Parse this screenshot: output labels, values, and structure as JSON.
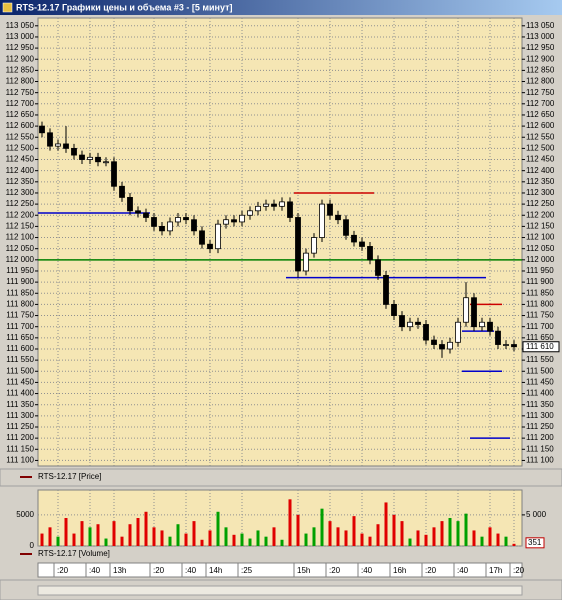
{
  "window_title": "RTS-12.17 Графики цены и объема #3 - [5 минут]",
  "chart_data": [
    {
      "type": "candlestick",
      "name": "RTS-12.17 [Price]",
      "categories": [
        null,
        null,
        ":20",
        null,
        null,
        null,
        ":40",
        null,
        null,
        "13h",
        null,
        null,
        null,
        null,
        ":20",
        null,
        null,
        null,
        ":40",
        null,
        null,
        "14h",
        null,
        null,
        null,
        ":25",
        null,
        null,
        null,
        null,
        null,
        null,
        "15h",
        null,
        null,
        null,
        ":20",
        null,
        null,
        null,
        ":40",
        null,
        null,
        null,
        "16h",
        null,
        null,
        null,
        ":20",
        null,
        null,
        null,
        ":40",
        null,
        null,
        null,
        "17h",
        null,
        null,
        ":20"
      ],
      "open": [
        112600,
        112570,
        112510,
        112520,
        112500,
        112470,
        112450,
        112460,
        112440,
        112440,
        112330,
        112280,
        112220,
        112210,
        112190,
        112150,
        112130,
        112170,
        112190,
        112180,
        112130,
        112070,
        112050,
        112160,
        112180,
        112170,
        112200,
        112220,
        112240,
        112250,
        112240,
        112260,
        112190,
        111950,
        112030,
        112100,
        112250,
        112200,
        112180,
        112110,
        112080,
        112060,
        112000,
        111930,
        111800,
        111750,
        111700,
        111720,
        111710,
        111640,
        111620,
        111600,
        111630,
        111720,
        111830,
        111700,
        111720,
        111680,
        111620,
        111620
      ],
      "high": [
        112620,
        112590,
        112540,
        112600,
        112520,
        112490,
        112480,
        112480,
        112460,
        112460,
        112350,
        112300,
        112240,
        112230,
        112210,
        112170,
        112190,
        112210,
        112210,
        112200,
        112150,
        112090,
        112180,
        112200,
        112200,
        112220,
        112240,
        112260,
        112270,
        112270,
        112280,
        112280,
        112210,
        112050,
        112120,
        112270,
        112270,
        112220,
        112200,
        112130,
        112100,
        112080,
        112020,
        111950,
        111820,
        111770,
        111740,
        111740,
        111730,
        111660,
        111640,
        111650,
        111740,
        111900,
        111850,
        111740,
        111740,
        111700,
        111640,
        111640
      ],
      "low": [
        112550,
        112490,
        112490,
        112480,
        112450,
        112430,
        112430,
        112420,
        112420,
        112310,
        112260,
        112200,
        112190,
        112170,
        112130,
        112110,
        112110,
        112150,
        112160,
        112110,
        112050,
        112030,
        112030,
        112140,
        112150,
        112150,
        112180,
        112200,
        112220,
        112220,
        112220,
        112170,
        111920,
        111930,
        112010,
        112080,
        112180,
        112160,
        112090,
        112060,
        112040,
        111980,
        111910,
        111780,
        111730,
        111680,
        111680,
        111690,
        111620,
        111600,
        111560,
        111580,
        111610,
        111700,
        111680,
        111680,
        111660,
        111600,
        111600,
        111590
      ],
      "close": [
        112570,
        112510,
        112520,
        112500,
        112470,
        112450,
        112460,
        112440,
        112440,
        112330,
        112280,
        112220,
        112210,
        112190,
        112150,
        112130,
        112170,
        112190,
        112180,
        112130,
        112070,
        112050,
        112160,
        112180,
        112170,
        112200,
        112220,
        112240,
        112250,
        112240,
        112260,
        112190,
        111950,
        112030,
        112100,
        112250,
        112200,
        112180,
        112110,
        112080,
        112060,
        112000,
        111930,
        111800,
        111750,
        111700,
        111720,
        111710,
        111640,
        111620,
        111600,
        111630,
        111720,
        111830,
        111700,
        111720,
        111680,
        111620,
        111620,
        111610
      ],
      "up_color": "#ffffff",
      "down_color": "#000000",
      "ylim": [
        111075,
        113085
      ],
      "yticks": [
        {
          "value": 113050,
          "label": "113 050"
        },
        {
          "value": 113000,
          "label": "113 000"
        },
        {
          "value": 112950,
          "label": "112 950"
        },
        {
          "value": 112900,
          "label": "112 900"
        },
        {
          "value": 112850,
          "label": "112 850"
        },
        {
          "value": 112800,
          "label": "112 800"
        },
        {
          "value": 112750,
          "label": "112 750"
        },
        {
          "value": 112700,
          "label": "112 700"
        },
        {
          "value": 112650,
          "label": "112 650"
        },
        {
          "value": 112600,
          "label": "112 600"
        },
        {
          "value": 112550,
          "label": "112 550"
        },
        {
          "value": 112500,
          "label": "112 500"
        },
        {
          "value": 112450,
          "label": "112 450"
        },
        {
          "value": 112400,
          "label": "112 400"
        },
        {
          "value": 112350,
          "label": "112 350"
        },
        {
          "value": 112300,
          "label": "112 300"
        },
        {
          "value": 112250,
          "label": "112 250"
        },
        {
          "value": 112200,
          "label": "112 200"
        },
        {
          "value": 112150,
          "label": "112 150"
        },
        {
          "value": 112100,
          "label": "112 100"
        },
        {
          "value": 112050,
          "label": "112 050"
        },
        {
          "value": 112000,
          "label": "112 000"
        },
        {
          "value": 111950,
          "label": "111 950"
        },
        {
          "value": 111900,
          "label": "111 900"
        },
        {
          "value": 111850,
          "label": "111 850"
        },
        {
          "value": 111800,
          "label": "111 800"
        },
        {
          "value": 111750,
          "label": "111 750"
        },
        {
          "value": 111700,
          "label": "111 700"
        },
        {
          "value": 111650,
          "label": "111 650"
        },
        {
          "value": 111600,
          "label": "111 600"
        },
        {
          "value": 111550,
          "label": "111 550"
        },
        {
          "value": 111500,
          "label": "111 500"
        },
        {
          "value": 111450,
          "label": "111 450"
        },
        {
          "value": 111400,
          "label": "111 400"
        },
        {
          "value": 111350,
          "label": "111 350"
        },
        {
          "value": 111300,
          "label": "111 300"
        },
        {
          "value": 111250,
          "label": "111 250"
        },
        {
          "value": 111200,
          "label": "111 200"
        },
        {
          "value": 111150,
          "label": "111 150"
        },
        {
          "value": 111100,
          "label": "111 100"
        }
      ],
      "grid": true,
      "levels": [
        {
          "value": 112000,
          "color": "#008000"
        },
        {
          "value": 112210,
          "color": "#0000cc",
          "start": 0,
          "end": 13
        },
        {
          "value": 112300,
          "color": "#cc0000",
          "start": 32,
          "end": 41
        },
        {
          "value": 111920,
          "color": "#0000cc",
          "start": 31,
          "end": 55
        },
        {
          "value": 111800,
          "color": "#cc0000",
          "start": 54,
          "end": 57
        },
        {
          "value": 111680,
          "color": "#0000cc",
          "start": 53,
          "end": 56
        },
        {
          "value": 111500,
          "color": "#0000cc",
          "start": 53,
          "end": 57
        },
        {
          "value": 111200,
          "color": "#0000cc",
          "start": 54,
          "end": 58
        }
      ],
      "value_labels": {
        "59": "111 610"
      }
    },
    {
      "type": "bar",
      "name": "RTS-12.17 [Volume]",
      "values": [
        2000,
        3000,
        1500,
        4500,
        2000,
        4000,
        3000,
        3500,
        1200,
        4000,
        1500,
        3500,
        4500,
        5500,
        3000,
        2500,
        1500,
        3500,
        2000,
        4000,
        1000,
        2500,
        5500,
        3000,
        1800,
        2000,
        1200,
        2500,
        1500,
        3000,
        1000,
        7500,
        5000,
        2000,
        3000,
        6000,
        4000,
        3000,
        2500,
        4800,
        2000,
        1500,
        3500,
        7000,
        5000,
        4000,
        1200,
        2500,
        1800,
        3000,
        4000,
        4500,
        4000,
        5200,
        2500,
        1500,
        3000,
        2000,
        1500,
        351
      ],
      "up_color": "#00a000",
      "down_color": "#e00000",
      "ylim": [
        0,
        9000
      ],
      "yticks": [
        0,
        5000
      ],
      "right_yticks": [
        {
          "value": 5000,
          "label": "5 000"
        }
      ],
      "grid": true,
      "value_labels": {
        "59": "351"
      }
    }
  ]
}
